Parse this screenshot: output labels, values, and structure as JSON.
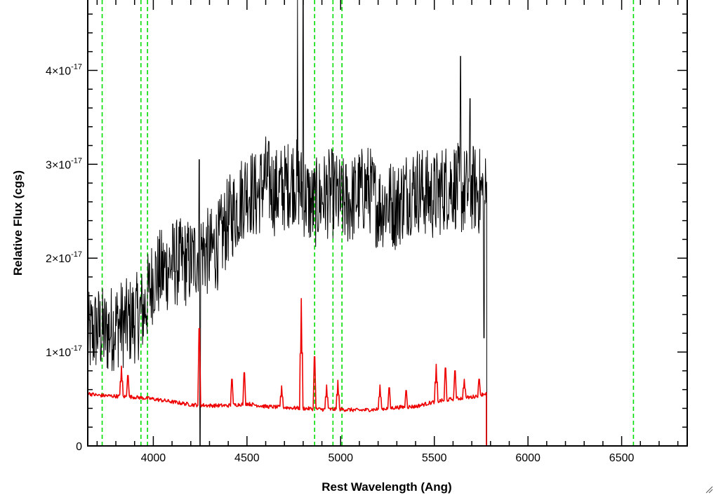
{
  "chart_data": {
    "type": "line",
    "xlabel": "Rest Wavelength (Ang)",
    "ylabel": "Relative Flux (cgs)",
    "xlim": [
      3650,
      6850
    ],
    "ylim": [
      0,
      4.75e-17
    ],
    "x_ticks": [
      {
        "value": 4000,
        "label": "4000"
      },
      {
        "value": 4500,
        "label": "4500"
      },
      {
        "value": 5000,
        "label": "5000"
      },
      {
        "value": 5500,
        "label": "5500"
      },
      {
        "value": 6000,
        "label": "6000"
      },
      {
        "value": 6500,
        "label": "6500"
      }
    ],
    "y_ticks": [
      {
        "value": 0,
        "mantissa": "0",
        "exponent": ""
      },
      {
        "value": 1e-17,
        "mantissa": "1×10",
        "exponent": "-17"
      },
      {
        "value": 2e-17,
        "mantissa": "2×10",
        "exponent": "-17"
      },
      {
        "value": 3e-17,
        "mantissa": "3×10",
        "exponent": "-17"
      },
      {
        "value": 4e-17,
        "mantissa": "4×10",
        "exponent": "-17"
      }
    ],
    "vlines": [
      3727,
      3934,
      3969,
      4861,
      4959,
      5007,
      6563
    ],
    "vline_color": "#00dd00",
    "series": [
      {
        "color": "#000000",
        "x": [
          3650,
          3700,
          3750,
          3800,
          3850,
          3900,
          3950,
          3980,
          4000,
          4050,
          4100,
          4150,
          4200,
          4250,
          4300,
          4350,
          4400,
          4450,
          4500,
          4550,
          4600,
          4650,
          4700,
          4750,
          4800,
          4850,
          4900,
          4950,
          5000,
          5050,
          5100,
          5150,
          5200,
          5250,
          5300,
          5350,
          5400,
          5450,
          5500,
          5550,
          5600,
          5650,
          5700,
          5750,
          5780
        ],
        "y": [
          1.15e-17,
          1.25e-17,
          1.2e-17,
          1.3e-17,
          1.3e-17,
          1.35e-17,
          1.45e-17,
          1.65e-17,
          1.8e-17,
          1.85e-17,
          1.95e-17,
          1.95e-17,
          1.95e-17,
          2.1e-17,
          2.05e-17,
          2.15e-17,
          2.4e-17,
          2.55e-17,
          2.75e-17,
          2.65e-17,
          2.85e-17,
          2.7e-17,
          2.75e-17,
          2.85e-17,
          2.7e-17,
          2.55e-17,
          2.65e-17,
          2.7e-17,
          2.6e-17,
          2.6e-17,
          2.7e-17,
          2.75e-17,
          2.55e-17,
          2.6e-17,
          2.55e-17,
          2.7e-17,
          2.75e-17,
          2.7e-17,
          2.65e-17,
          2.75e-17,
          2.8e-17,
          2.7e-17,
          2.75e-17,
          2.7e-17,
          2.65e-17
        ],
        "noise_level": 3e-18,
        "spikes": [
          {
            "x": 4245,
            "y": 3.05e-17
          },
          {
            "x": 4250,
            "y": 0
          },
          {
            "x": 4770,
            "y": 4.75e-17
          },
          {
            "x": 4800,
            "y": 4.75e-17
          },
          {
            "x": 5640,
            "y": 4.15e-17
          },
          {
            "x": 5690,
            "y": 3.7e-17
          },
          {
            "x": 5765,
            "y": 1.15e-17
          }
        ],
        "cutoff": {
          "x": 5780,
          "y": 0
        }
      },
      {
        "color": "#ee0000",
        "x": [
          3650,
          3700,
          3800,
          3900,
          4000,
          4100,
          4200,
          4300,
          4400,
          4500,
          4600,
          4700,
          4800,
          4900,
          5000,
          5100,
          5200,
          5300,
          5400,
          5500,
          5600,
          5700,
          5775
        ],
        "y": [
          5.6e-18,
          5.4e-18,
          5.3e-18,
          5.2e-18,
          5e-18,
          4.7e-18,
          4.4e-18,
          4.3e-18,
          4.3e-18,
          4.5e-18,
          4.2e-18,
          4.1e-18,
          4e-18,
          3.9e-18,
          3.9e-18,
          3.8e-18,
          3.9e-18,
          4.1e-18,
          4.2e-18,
          4.7e-18,
          5e-18,
          5.2e-18,
          5.6e-18
        ],
        "noise_level": 2e-19,
        "spikes": [
          {
            "x": 3830,
            "y": 8.5e-18
          },
          {
            "x": 3865,
            "y": 7.5e-18
          },
          {
            "x": 4245,
            "y": 1.25e-17
          },
          {
            "x": 4420,
            "y": 7.1e-18
          },
          {
            "x": 4485,
            "y": 7.8e-18
          },
          {
            "x": 4685,
            "y": 6.4e-18
          },
          {
            "x": 4790,
            "y": 1.57e-17
          },
          {
            "x": 4860,
            "y": 9.5e-18
          },
          {
            "x": 4925,
            "y": 6.5e-18
          },
          {
            "x": 4985,
            "y": 7e-18
          },
          {
            "x": 5210,
            "y": 6.5e-18
          },
          {
            "x": 5260,
            "y": 6.2e-18
          },
          {
            "x": 5350,
            "y": 5.9e-18
          },
          {
            "x": 5510,
            "y": 8.7e-18
          },
          {
            "x": 5560,
            "y": 8.3e-18
          },
          {
            "x": 5610,
            "y": 8e-18
          },
          {
            "x": 5660,
            "y": 7.1e-18
          },
          {
            "x": 5740,
            "y": 7.1e-18
          }
        ],
        "cutoff": {
          "x": 5778,
          "y": 0
        },
        "tail": {
          "x_start": 5778,
          "x_end": 6850,
          "y": 0
        }
      }
    ]
  }
}
